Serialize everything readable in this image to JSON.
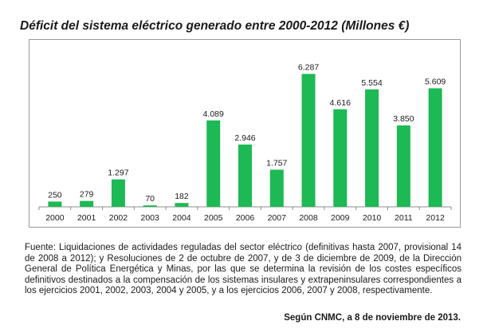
{
  "title": "Déficit del sistema eléctrico generado entre 2000-2012 (Millones €)",
  "chart_data": {
    "type": "bar",
    "title": "Déficit del sistema eléctrico generado entre 2000-2012 (Millones €)",
    "categories": [
      "2000",
      "2001",
      "2002",
      "2003",
      "2004",
      "2005",
      "2006",
      "2007",
      "2008",
      "2009",
      "2010",
      "2011",
      "2012"
    ],
    "values": [
      250,
      279,
      1297,
      70,
      182,
      4089,
      2946,
      1757,
      6287,
      4616,
      5554,
      3850,
      5609
    ],
    "value_labels": [
      "250",
      "279",
      "1.297",
      "70",
      "182",
      "4.089",
      "2.946",
      "1.757",
      "6.287",
      "4.616",
      "5.554",
      "3.850",
      "5.609"
    ],
    "xlabel": "",
    "ylabel": "",
    "ylim": [
      0,
      6800
    ],
    "grid": false,
    "legend": "none",
    "bar_color": "#1db954"
  },
  "source": "Fuente: Liquidaciones de actividades reguladas del sector eléctrico (definitivas hasta 2007, provisional 14 de 2008 a 2012); y Resoluciones de 2 de octubre de 2007, y de 3 de diciembre de 2009, de la Dirección General de Política Energética y Minas, por las que se determina la revisión de los costes específicos definitivos destinados a la compensación de los sistemas insulares y extrapeninsulares correspondientes a los ejercicios 2001, 2002, 2003, 2004 y 2005, y a los ejercicios 2006, 2007 y 2008, respectivamente.",
  "footer": "Según CNMC, a 8 de noviembre de 2013."
}
